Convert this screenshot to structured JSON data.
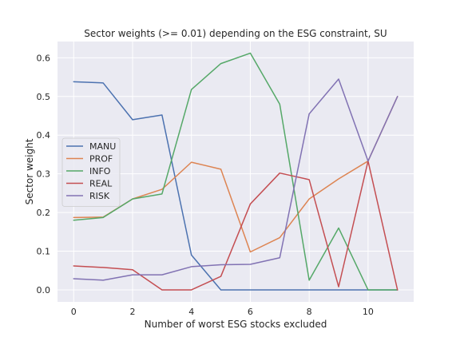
{
  "chart_data": {
    "type": "line",
    "title": "Sector weights (>= 0.01) depending on the ESG constraint, SU",
    "xlabel": "Number of worst ESG stocks excluded",
    "ylabel": "Sector weight",
    "x": [
      0,
      1,
      2,
      3,
      4,
      5,
      6,
      7,
      8,
      9,
      10,
      11
    ],
    "xlim": [
      -0.55,
      11.55
    ],
    "ylim": [
      -0.031,
      0.642
    ],
    "xticks": [
      0,
      2,
      4,
      6,
      8,
      10
    ],
    "yticks": [
      0.0,
      0.1,
      0.2,
      0.3,
      0.4,
      0.5,
      0.6
    ],
    "grid": true,
    "legend_position": "center-left",
    "series": [
      {
        "name": "MANU",
        "color": "#4c72b0",
        "values": [
          0.538,
          0.535,
          0.44,
          0.452,
          0.09,
          0.0,
          0.0,
          0.0,
          0.0,
          0.0,
          0.0,
          0.0
        ]
      },
      {
        "name": "PROF",
        "color": "#dd8452",
        "values": [
          0.187,
          0.188,
          0.235,
          0.26,
          0.33,
          0.312,
          0.098,
          0.135,
          0.235,
          0.287,
          0.333,
          0.5
        ]
      },
      {
        "name": "INFO",
        "color": "#55a868",
        "values": [
          0.18,
          0.187,
          0.235,
          0.248,
          0.518,
          0.585,
          0.612,
          0.48,
          0.025,
          0.16,
          0.0,
          0.0
        ]
      },
      {
        "name": "REAL",
        "color": "#c44e52",
        "values": [
          0.062,
          0.058,
          0.052,
          0.0,
          0.0,
          0.035,
          0.222,
          0.302,
          0.285,
          0.008,
          0.333,
          0.0
        ]
      },
      {
        "name": "RISK",
        "color": "#8172b3",
        "values": [
          0.029,
          0.025,
          0.039,
          0.039,
          0.06,
          0.065,
          0.066,
          0.083,
          0.455,
          0.545,
          0.333,
          0.5
        ]
      }
    ]
  },
  "style": {
    "plot_background": "#eaeaf2",
    "grid_color": "#ffffff",
    "text_color": "#262626"
  }
}
